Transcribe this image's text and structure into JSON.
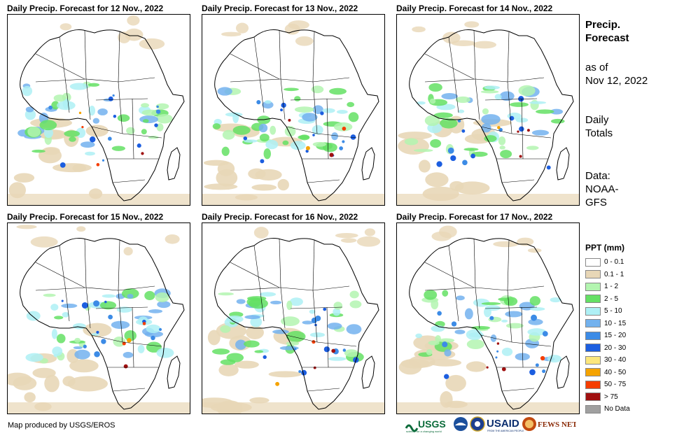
{
  "panels": [
    {
      "title": "Daily Precip. Forecast for 12 Nov., 2022"
    },
    {
      "title": "Daily Precip. Forecast for 13 Nov., 2022"
    },
    {
      "title": "Daily Precip. Forecast for 14 Nov., 2022"
    },
    {
      "title": "Daily Precip. Forecast for 15 Nov., 2022"
    },
    {
      "title": "Daily Precip. Forecast for 16 Nov., 2022"
    },
    {
      "title": "Daily Precip. Forecast for 17 Nov., 2022"
    }
  ],
  "sidebar": {
    "title_line1": "Precip.",
    "title_line2": "Forecast",
    "asof_line1": "as of",
    "asof_line2": "Nov 12, 2022",
    "totals_line1": "Daily",
    "totals_line2": "Totals",
    "data_line1": "Data:",
    "data_line2": "NOAA-",
    "data_line3": "GFS"
  },
  "legend": {
    "title": "PPT (mm)",
    "items": [
      {
        "label": "0 - 0.1",
        "color": "#ffffff"
      },
      {
        "label": "0.1 - 1",
        "color": "#e8d7b7"
      },
      {
        "label": "1 - 2",
        "color": "#b3f5b0"
      },
      {
        "label": "2 - 5",
        "color": "#64e064"
      },
      {
        "label": "5 - 10",
        "color": "#aef0f5"
      },
      {
        "label": "10 - 15",
        "color": "#73b2ee"
      },
      {
        "label": "15 - 20",
        "color": "#3c8be6"
      },
      {
        "label": "20 - 30",
        "color": "#1c5ee0"
      },
      {
        "label": "30 - 40",
        "color": "#fce77c"
      },
      {
        "label": "40 - 50",
        "color": "#f5a300"
      },
      {
        "label": "50 - 75",
        "color": "#f53d00"
      },
      {
        "label": "> 75",
        "color": "#a01010"
      },
      {
        "label": "No Data",
        "color": "#a0a0a0"
      }
    ]
  },
  "footer": {
    "credit": "Map produced by USGS/EROS",
    "logo_usgs": "USGS",
    "logo_usgs_tag": "science for a changing world",
    "logo_usaid": "USAID",
    "logo_usaid_tag": "FROM THE AMERICAN PEOPLE",
    "logo_fews": "FEWS NET"
  }
}
